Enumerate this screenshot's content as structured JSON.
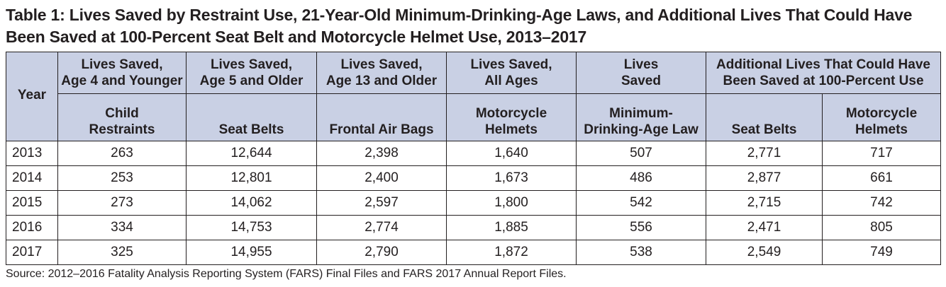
{
  "title": {
    "line1": "Table 1: Lives Saved by Restraint Use, 21-Year-Old Minimum-Drinking-Age Laws, and Additional Lives That Could Have",
    "line2": "Been Saved at 100-Percent Seat Belt and Motorcycle Helmet Use, 2013–2017"
  },
  "header": {
    "year_label": "Year",
    "group_headers": [
      {
        "line1": "Lives Saved,",
        "line2": "Age 4 and Younger"
      },
      {
        "line1": "Lives Saved,",
        "line2": "Age 5 and Older"
      },
      {
        "line1": "Lives Saved,",
        "line2": "Age 13 and Older"
      },
      {
        "line1": "Lives Saved,",
        "line2": "All Ages"
      },
      {
        "line1": "Lives",
        "line2": "Saved"
      },
      {
        "line1": "Additional Lives That Could Have",
        "line2": "Been Saved at 100-Percent Use"
      }
    ],
    "sub_headers": [
      {
        "line1": "Child",
        "line2": "Restraints"
      },
      {
        "line1": "",
        "line2": "Seat Belts"
      },
      {
        "line1": "",
        "line2": "Frontal Air Bags"
      },
      {
        "line1": "Motorcycle",
        "line2": "Helmets"
      },
      {
        "line1": "Minimum-",
        "line2": "Drinking-Age Law"
      },
      {
        "line1": "",
        "line2": "Seat Belts"
      },
      {
        "line1": "Motorcycle",
        "line2": "Helmets"
      }
    ]
  },
  "rows": [
    {
      "year": "2013",
      "values": [
        "263",
        "12,644",
        "2,398",
        "1,640",
        "507",
        "2,771",
        "717"
      ]
    },
    {
      "year": "2014",
      "values": [
        "253",
        "12,801",
        "2,400",
        "1,673",
        "486",
        "2,877",
        "661"
      ]
    },
    {
      "year": "2015",
      "values": [
        "273",
        "14,062",
        "2,597",
        "1,800",
        "542",
        "2,715",
        "742"
      ]
    },
    {
      "year": "2016",
      "values": [
        "334",
        "14,753",
        "2,774",
        "1,885",
        "556",
        "2,471",
        "805"
      ]
    },
    {
      "year": "2017",
      "values": [
        "325",
        "14,955",
        "2,790",
        "1,872",
        "538",
        "2,549",
        "749"
      ]
    }
  ],
  "source": "Source: 2012–2016 Fatality Analysis Reporting System (FARS) Final Files and FARS 2017 Annual Report Files.",
  "colors": {
    "header_background": "#c9d0e4",
    "text": "#231f20",
    "border": "#231f20"
  }
}
